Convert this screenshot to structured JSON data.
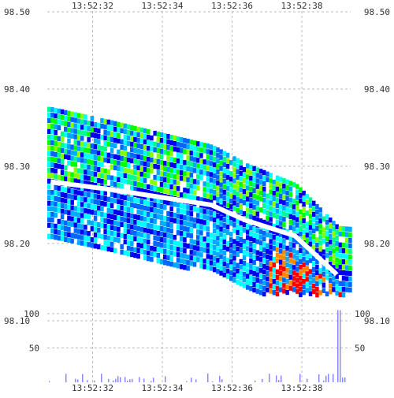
{
  "chart_data": [
    {
      "type": "heatmap",
      "title": "",
      "x_tick_labels": [
        "13:52:32",
        "13:52:34",
        "13:52:36",
        "13:52:38"
      ],
      "y_tick_labels": [
        "98.10",
        "98.20",
        "98.30",
        "98.40",
        "98.50"
      ],
      "y_ticks": [
        98.1,
        98.2,
        98.3,
        98.4,
        98.5
      ],
      "ylim": [
        98.04,
        98.5
      ],
      "grid": true,
      "price_line": [
        {
          "t": "13:52:30.8",
          "p": 98.28
        },
        {
          "t": "13:52:32.5",
          "p": 98.27
        },
        {
          "t": "13:52:35.4",
          "p": 98.25
        },
        {
          "t": "13:52:36.4",
          "p": 98.23
        },
        {
          "t": "13:52:37.8",
          "p": 98.21
        },
        {
          "t": "13:52:39.0",
          "p": 98.16
        }
      ],
      "color_scale": [
        "#0000ee",
        "#0066ff",
        "#00aaff",
        "#00ffff",
        "#00ff88",
        "#00ff00",
        "#88ff00",
        "#ffff00",
        "#ff8800",
        "#ff0000"
      ]
    },
    {
      "type": "bar",
      "title": "",
      "y_tick_labels": [
        "50",
        "100"
      ],
      "y_ticks": [
        50,
        100
      ],
      "ylim": [
        0,
        115
      ],
      "grid": true,
      "bar_color": "#8888ff",
      "peak": {
        "t": "13:52:39.05",
        "v": 105
      }
    }
  ]
}
